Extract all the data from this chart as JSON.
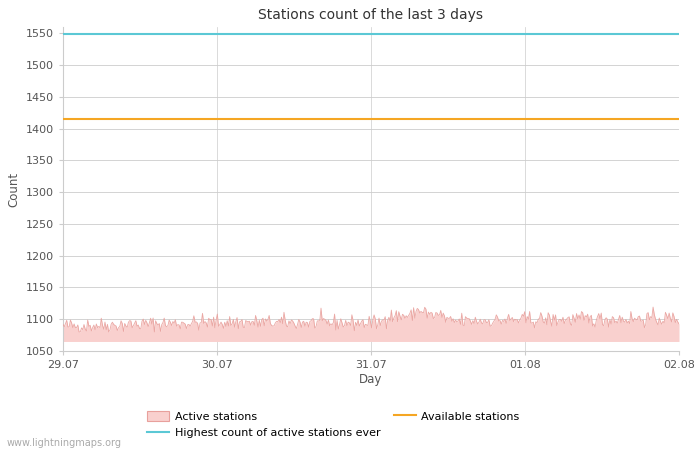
{
  "title": "Stations count of the last 3 days",
  "xlabel": "Day",
  "ylabel": "Count",
  "ylim": [
    1050,
    1560
  ],
  "yticks": [
    1050,
    1100,
    1150,
    1200,
    1250,
    1300,
    1350,
    1400,
    1450,
    1500,
    1550
  ],
  "xlim_start": 0,
  "xlim_end": 96,
  "xtick_positions": [
    0,
    24,
    48,
    72,
    96
  ],
  "xtick_labels": [
    "29.07",
    "30.07",
    "31.07",
    "01.08",
    "02.08"
  ],
  "highest_ever": 1549,
  "highest_ever_color": "#5bc8d5",
  "available_stations": 1415,
  "available_color": "#f5a623",
  "active_fill_color": "#f9d0ce",
  "active_line_color": "#e8a09c",
  "background_color": "#ffffff",
  "grid_color": "#cccccc",
  "watermark": "www.lightningmaps.org",
  "legend_labels": [
    "Active stations",
    "Highest count of active stations ever",
    "Available stations"
  ],
  "active_base_fill": 1065,
  "seed": 42
}
